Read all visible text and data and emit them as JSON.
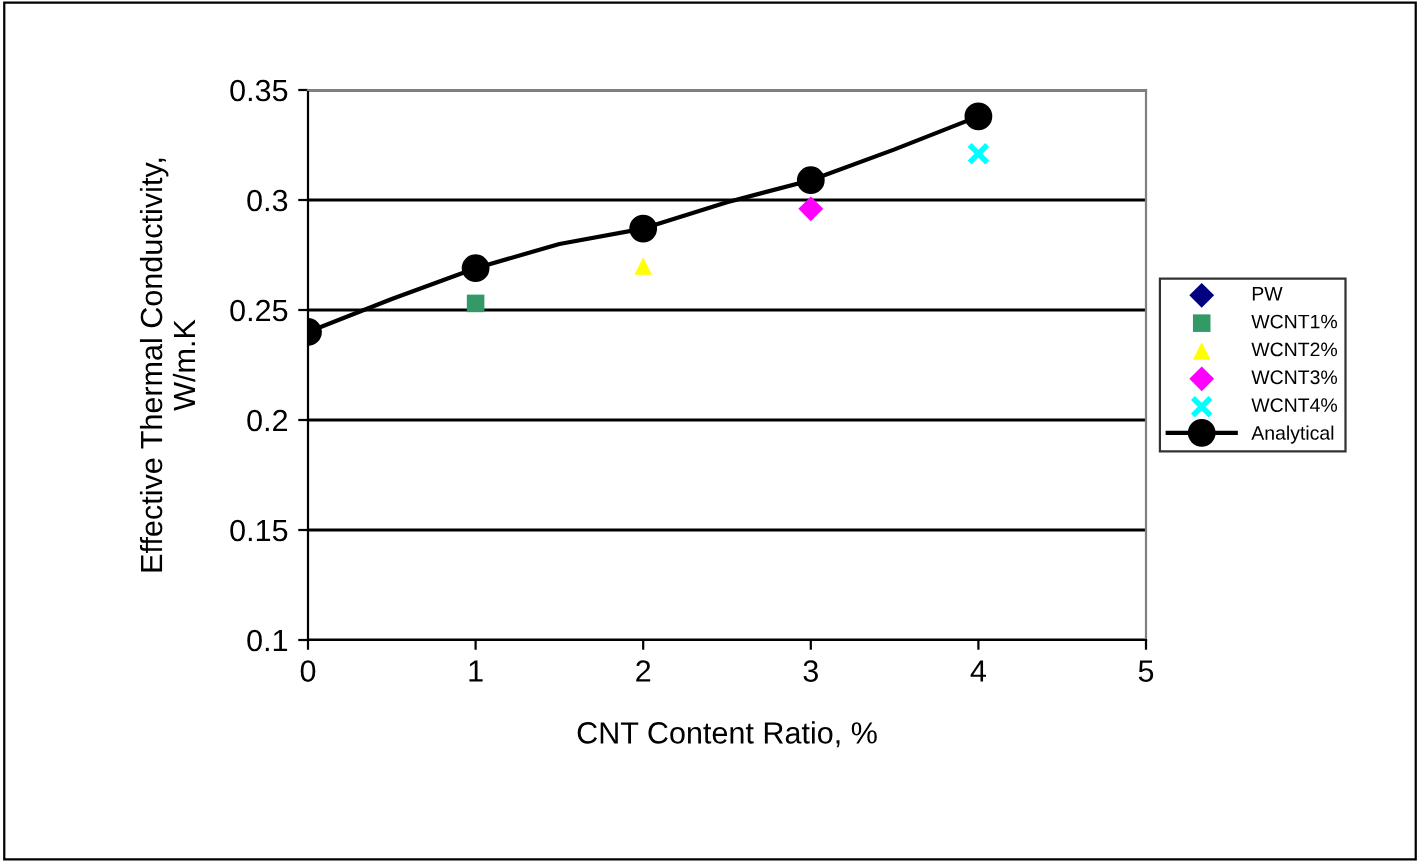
{
  "chart_data": {
    "type": "scatter",
    "xlabel": "CNT Content Ratio, %",
    "ylabel": "Effective Thermal Conductivity,\nW/m.K",
    "xlim": [
      0,
      5
    ],
    "xticks": [
      0,
      1,
      2,
      3,
      4,
      5
    ],
    "ylim": [
      0.1,
      0.35
    ],
    "yticks": [
      0.1,
      0.15,
      0.2,
      0.25,
      0.3,
      0.35
    ],
    "grid": "y",
    "legend": "right",
    "series": [
      {
        "name": "PW",
        "color": "#000080",
        "marker": "diamond"
      },
      {
        "name": "WCNT1%",
        "color": "#339966",
        "marker": "square",
        "x": [
          1
        ],
        "values": [
          0.253
        ]
      },
      {
        "name": "WCNT2%",
        "color": "#ffff00",
        "marker": "triangle",
        "x": [
          2
        ],
        "values": [
          0.27
        ]
      },
      {
        "name": "WCNT3%",
        "color": "#ff00ff",
        "marker": "diamond",
        "x": [
          3
        ],
        "values": [
          0.296
        ]
      },
      {
        "name": "WCNT4%",
        "color": "#00ffff",
        "marker": "cross",
        "x": [
          4
        ],
        "values": [
          0.321
        ]
      },
      {
        "name": "Analytical",
        "type": "line",
        "color": "#000000",
        "marker": "circle",
        "line_style": "solid",
        "x": [
          0,
          0.5,
          1,
          1.5,
          2,
          2.5,
          3,
          3.5,
          4
        ],
        "values": [
          0.24,
          0.255,
          0.269,
          0.28,
          0.287,
          0.299,
          0.309,
          0.323,
          0.338
        ]
      }
    ]
  }
}
